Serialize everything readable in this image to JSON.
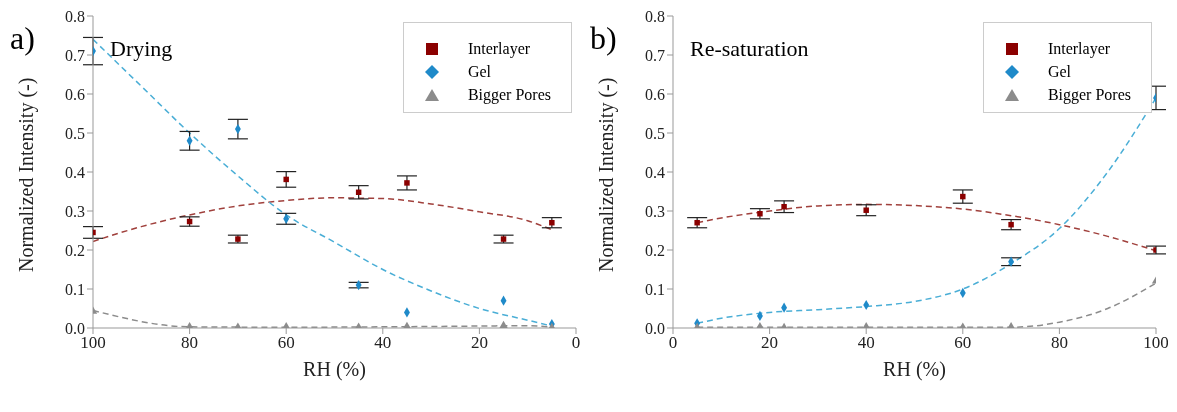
{
  "chart_data": [
    {
      "type": "scatter",
      "title": "Drying",
      "annotations": [
        "a)"
      ],
      "xlabel": "RH (%)",
      "ylabel": "Normalized Intensity (-)",
      "xlim": [
        100,
        0
      ],
      "xticks": [
        100,
        80,
        60,
        40,
        20,
        0
      ],
      "ylim": [
        0,
        0.8
      ],
      "yticks": [
        {
          "value": 0,
          "label": "0.0"
        },
        0.1,
        0.2,
        0.3,
        0.4,
        0.5,
        0.6,
        0.7,
        0.8
      ],
      "legend": "top right",
      "series": [
        {
          "type": "line",
          "color": "#a0403c",
          "line_style": "dashed",
          "marker": "none",
          "x": [
            100,
            90,
            80,
            70,
            60,
            50,
            45,
            40,
            30,
            20,
            10,
            5
          ],
          "values": [
            0.222,
            0.26,
            0.29,
            0.313,
            0.327,
            0.334,
            0.333,
            0.332,
            0.318,
            0.298,
            0.275,
            0.252
          ]
        },
        {
          "type": "line",
          "color": "#4aaed6",
          "line_style": "dashed",
          "marker": "none",
          "x": [
            100,
            90,
            80,
            70,
            60,
            50,
            40,
            30,
            20,
            10,
            5
          ],
          "values": [
            0.74,
            0.62,
            0.5,
            0.39,
            0.29,
            0.22,
            0.15,
            0.095,
            0.05,
            0.02,
            0.005
          ]
        },
        {
          "type": "line",
          "color": "#8c8c8c",
          "line_style": "dashed",
          "marker": "none",
          "x": [
            100,
            80,
            60,
            40,
            20,
            10,
            5
          ],
          "values": [
            0.045,
            0.003,
            0.002,
            0.003,
            0.005,
            0.006,
            0.002
          ]
        },
        {
          "name": "Interlayer",
          "color": "#8b0000",
          "marker": "square",
          "x": [
            100,
            80,
            70,
            60,
            45,
            35,
            15,
            5
          ],
          "values": [
            0.245,
            0.273,
            0.228,
            0.381,
            0.348,
            0.372,
            0.228,
            0.27
          ],
          "errors": [
            0.015,
            0.012,
            0.01,
            0.02,
            0.017,
            0.018,
            0.01,
            0.013
          ]
        },
        {
          "name": "Gel",
          "color": "#1f8ac9",
          "marker": "diamond",
          "x": [
            100,
            80,
            70,
            60,
            45,
            35,
            15,
            5
          ],
          "values": [
            0.71,
            0.48,
            0.51,
            0.28,
            0.11,
            0.04,
            0.07,
            0.01
          ],
          "errors": [
            0.035,
            0.024,
            0.025,
            0.014,
            0.007,
            null,
            null,
            null
          ]
        },
        {
          "name": "Bigger Pores",
          "color": "#8c8c8c",
          "marker": "triangle",
          "x": [
            100,
            80,
            70,
            60,
            45,
            35,
            15,
            5
          ],
          "values": [
            0.043,
            0.003,
            0.002,
            0.003,
            0.002,
            0.004,
            0.006,
            0.001
          ]
        }
      ]
    },
    {
      "type": "scatter",
      "title": "Re-saturation",
      "annotations": [
        "b)"
      ],
      "xlabel": "RH (%)",
      "ylabel": "Normalized Intensity (-)",
      "xlim": [
        0,
        100
      ],
      "xticks": [
        0,
        20,
        40,
        60,
        80,
        100
      ],
      "ylim": [
        0,
        0.8
      ],
      "yticks": [
        {
          "value": 0,
          "label": "0.0"
        },
        0.1,
        0.2,
        0.3,
        0.4,
        0.5,
        0.6,
        0.7,
        0.8
      ],
      "legend": "top right",
      "series": [
        {
          "type": "line",
          "color": "#a0403c",
          "line_style": "dashed",
          "marker": "none",
          "x": [
            5,
            10,
            20,
            30,
            40,
            50,
            60,
            70,
            80,
            90,
            100
          ],
          "values": [
            0.27,
            0.282,
            0.3,
            0.313,
            0.317,
            0.314,
            0.305,
            0.288,
            0.265,
            0.235,
            0.198
          ]
        },
        {
          "type": "line",
          "color": "#4aaed6",
          "line_style": "dashed",
          "marker": "none",
          "x": [
            5,
            10,
            20,
            30,
            40,
            50,
            60,
            70,
            80,
            90,
            100
          ],
          "values": [
            0.012,
            0.025,
            0.04,
            0.047,
            0.055,
            0.068,
            0.1,
            0.165,
            0.255,
            0.4,
            0.59
          ]
        },
        {
          "type": "line",
          "color": "#8c8c8c",
          "line_style": "dashed",
          "marker": "none",
          "x": [
            5,
            40,
            70,
            80,
            90,
            100
          ],
          "values": [
            0.002,
            0.002,
            0.002,
            0.015,
            0.05,
            0.115
          ]
        },
        {
          "name": "Interlayer",
          "color": "#8b0000",
          "marker": "square",
          "x": [
            5,
            18,
            23,
            40,
            60,
            70,
            100
          ],
          "values": [
            0.27,
            0.293,
            0.311,
            0.302,
            0.337,
            0.265,
            0.2
          ],
          "errors": [
            0.013,
            0.013,
            0.015,
            0.014,
            0.017,
            0.013,
            0.01
          ]
        },
        {
          "name": "Gel",
          "color": "#1f8ac9",
          "marker": "diamond",
          "x": [
            5,
            18,
            23,
            40,
            60,
            70,
            100
          ],
          "values": [
            0.012,
            0.031,
            0.052,
            0.059,
            0.09,
            0.17,
            0.59
          ],
          "errors": [
            null,
            null,
            null,
            null,
            null,
            0.01,
            0.03
          ]
        },
        {
          "name": "Bigger Pores",
          "color": "#8c8c8c",
          "marker": "triangle",
          "x": [
            5,
            18,
            23,
            40,
            60,
            70,
            100
          ],
          "values": [
            0.001,
            0.003,
            0.001,
            0.003,
            0.002,
            0.003,
            0.12
          ]
        }
      ]
    }
  ]
}
